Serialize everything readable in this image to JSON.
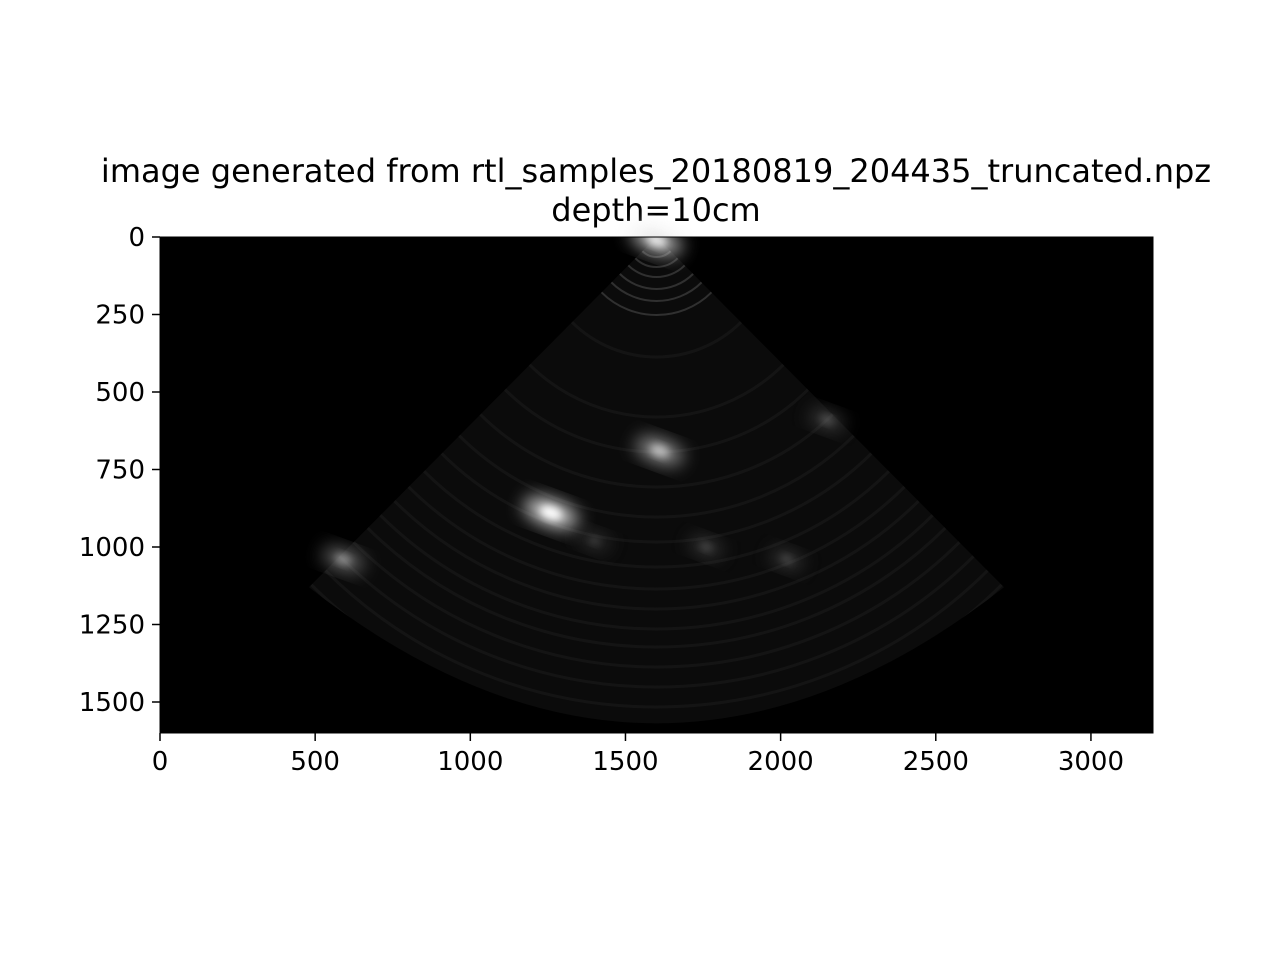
{
  "chart_data": {
    "type": "heatmap",
    "title": "image generated from rtl_samples_20180819_204435_truncated.npz",
    "subtitle": "depth=10cm",
    "xlabel": "",
    "ylabel": "",
    "colormap": "gray",
    "background_color": "#000000",
    "xlim": [
      0,
      3200
    ],
    "ylim": [
      1600,
      0
    ],
    "x_ticks": [
      0,
      500,
      1000,
      1500,
      2000,
      2500,
      3000
    ],
    "x_tick_labels": [
      "0",
      "500",
      "1000",
      "1500",
      "2000",
      "2500",
      "3000"
    ],
    "y_ticks": [
      0,
      250,
      500,
      750,
      1000,
      1250,
      1500
    ],
    "y_tick_labels": [
      "0",
      "250",
      "500",
      "750",
      "1000",
      "1250",
      "1500"
    ],
    "grid": false,
    "legend": "none",
    "sector": {
      "apex": [
        1600,
        0
      ],
      "outer_radius": 1580,
      "left_edge_end": [
        480,
        1130
      ],
      "right_edge_end": [
        2720,
        1130
      ]
    },
    "bright_spots": [
      {
        "x": 1600,
        "y": 10,
        "intensity": 0.9
      },
      {
        "x": 1260,
        "y": 890,
        "intensity": 1.0
      },
      {
        "x": 1610,
        "y": 690,
        "intensity": 0.75
      },
      {
        "x": 590,
        "y": 1040,
        "intensity": 0.55
      },
      {
        "x": 2150,
        "y": 590,
        "intensity": 0.3
      },
      {
        "x": 1760,
        "y": 1000,
        "intensity": 0.25
      },
      {
        "x": 2020,
        "y": 1040,
        "intensity": 0.25
      },
      {
        "x": 1400,
        "y": 980,
        "intensity": 0.2
      }
    ]
  }
}
